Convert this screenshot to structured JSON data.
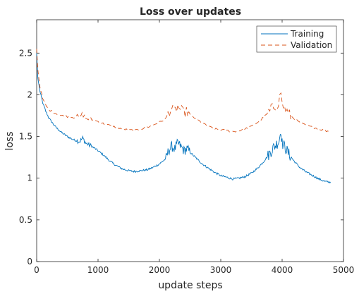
{
  "chart_data": {
    "type": "line",
    "title": "Loss over updates",
    "xlabel": "update steps",
    "ylabel": "loss",
    "xlim": [
      0,
      5000
    ],
    "ylim": [
      0,
      2.9
    ],
    "xticks": [
      0,
      1000,
      2000,
      3000,
      4000,
      5000
    ],
    "yticks": [
      0,
      0.5,
      1,
      1.5,
      2,
      2.5
    ],
    "xtick_labels": [
      "0",
      "1000",
      "2000",
      "3000",
      "4000",
      "5000"
    ],
    "ytick_labels": [
      "0",
      "0.5",
      "1",
      "1.5",
      "2",
      "2.5"
    ],
    "grid": false,
    "legend_position": "top-right",
    "series": [
      {
        "name": "Training",
        "color": "#0072BD",
        "style": "solid",
        "x": [
          0,
          20,
          50,
          100,
          150,
          200,
          300,
          400,
          500,
          600,
          700,
          750,
          800,
          900,
          1000,
          1100,
          1200,
          1300,
          1400,
          1500,
          1600,
          1700,
          1800,
          1900,
          2000,
          2100,
          2150,
          2200,
          2250,
          2300,
          2350,
          2400,
          2450,
          2500,
          2600,
          2700,
          2800,
          2900,
          3000,
          3100,
          3200,
          3300,
          3400,
          3500,
          3600,
          3700,
          3800,
          3850,
          3900,
          3950,
          3980,
          4000,
          4050,
          4100,
          4200,
          4300,
          4400,
          4500,
          4600,
          4700,
          4790
        ],
        "y": [
          2.5,
          2.2,
          2.05,
          1.9,
          1.8,
          1.72,
          1.62,
          1.55,
          1.5,
          1.46,
          1.44,
          1.48,
          1.42,
          1.38,
          1.33,
          1.27,
          1.2,
          1.15,
          1.11,
          1.09,
          1.08,
          1.09,
          1.1,
          1.13,
          1.17,
          1.23,
          1.33,
          1.38,
          1.35,
          1.42,
          1.38,
          1.33,
          1.35,
          1.31,
          1.24,
          1.17,
          1.12,
          1.07,
          1.03,
          1.01,
          0.99,
          1.0,
          1.02,
          1.06,
          1.12,
          1.2,
          1.3,
          1.36,
          1.4,
          1.45,
          1.58,
          1.42,
          1.37,
          1.3,
          1.2,
          1.12,
          1.07,
          1.03,
          0.99,
          0.96,
          0.95
        ]
      },
      {
        "name": "Validation",
        "color": "#D95319",
        "style": "dashed",
        "x": [
          0,
          20,
          50,
          100,
          150,
          200,
          300,
          400,
          500,
          600,
          700,
          750,
          800,
          900,
          1000,
          1100,
          1200,
          1300,
          1400,
          1500,
          1600,
          1700,
          1800,
          1900,
          2000,
          2100,
          2150,
          2200,
          2250,
          2300,
          2350,
          2400,
          2450,
          2500,
          2600,
          2700,
          2800,
          2900,
          3000,
          3100,
          3200,
          3300,
          3400,
          3500,
          3600,
          3700,
          3800,
          3850,
          3900,
          3950,
          3980,
          4000,
          4050,
          4100,
          4200,
          4300,
          4400,
          4500,
          4600,
          4700,
          4790
        ],
        "y": [
          2.55,
          2.3,
          2.1,
          1.95,
          1.87,
          1.82,
          1.78,
          1.75,
          1.74,
          1.73,
          1.74,
          1.77,
          1.72,
          1.7,
          1.68,
          1.65,
          1.63,
          1.61,
          1.59,
          1.58,
          1.57,
          1.59,
          1.61,
          1.64,
          1.67,
          1.71,
          1.79,
          1.83,
          1.8,
          1.86,
          1.82,
          1.78,
          1.8,
          1.76,
          1.71,
          1.66,
          1.62,
          1.59,
          1.58,
          1.57,
          1.56,
          1.57,
          1.59,
          1.62,
          1.67,
          1.73,
          1.8,
          1.85,
          1.87,
          1.92,
          2.05,
          1.88,
          1.83,
          1.77,
          1.71,
          1.66,
          1.63,
          1.61,
          1.59,
          1.57,
          1.56
        ]
      }
    ]
  }
}
